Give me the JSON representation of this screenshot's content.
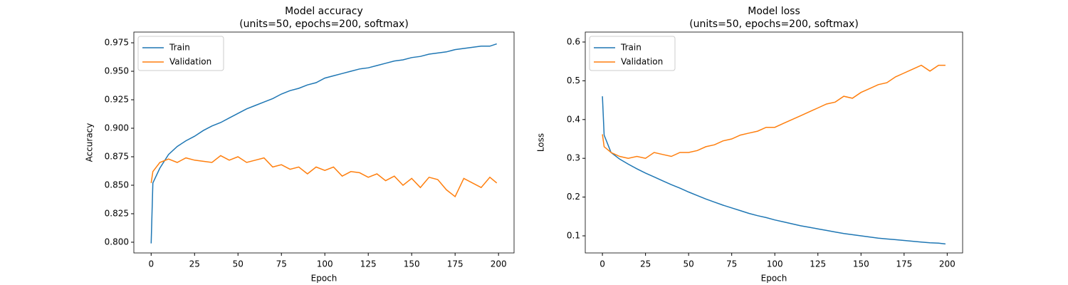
{
  "chart_data": [
    {
      "type": "line",
      "title": "Model accuracy",
      "subtitle": "(units=50, epochs=200, softmax)",
      "x_label": "Epoch",
      "y_label": "Accuracy",
      "x": [
        0,
        1,
        5,
        10,
        15,
        20,
        25,
        30,
        35,
        40,
        45,
        50,
        55,
        60,
        65,
        70,
        75,
        80,
        85,
        90,
        95,
        100,
        105,
        110,
        115,
        120,
        125,
        130,
        135,
        140,
        145,
        150,
        155,
        160,
        165,
        170,
        175,
        180,
        185,
        190,
        195,
        199
      ],
      "series": [
        {
          "name": "Train",
          "color": "#1f77b4",
          "values": [
            0.799,
            0.852,
            0.865,
            0.877,
            0.884,
            0.889,
            0.893,
            0.898,
            0.902,
            0.905,
            0.909,
            0.913,
            0.917,
            0.92,
            0.923,
            0.926,
            0.93,
            0.933,
            0.935,
            0.938,
            0.94,
            0.944,
            0.946,
            0.948,
            0.95,
            0.952,
            0.953,
            0.955,
            0.957,
            0.959,
            0.96,
            0.962,
            0.963,
            0.965,
            0.966,
            0.967,
            0.969,
            0.97,
            0.971,
            0.972,
            0.972,
            0.974
          ]
        },
        {
          "name": "Validation",
          "color": "#ff7f0e",
          "values": [
            0.852,
            0.862,
            0.87,
            0.873,
            0.87,
            0.874,
            0.872,
            0.871,
            0.87,
            0.876,
            0.872,
            0.875,
            0.87,
            0.872,
            0.874,
            0.866,
            0.868,
            0.864,
            0.866,
            0.86,
            0.866,
            0.863,
            0.866,
            0.858,
            0.862,
            0.861,
            0.857,
            0.86,
            0.854,
            0.858,
            0.85,
            0.856,
            0.848,
            0.857,
            0.855,
            0.846,
            0.84,
            0.856,
            0.852,
            0.848,
            0.857,
            0.852
          ]
        }
      ],
      "xlim": [
        -9.95,
        208.95
      ],
      "xticks": [
        0,
        25,
        50,
        75,
        100,
        125,
        150,
        175,
        200
      ],
      "ylim": [
        0.7906,
        0.9844
      ],
      "yticks": [
        {
          "value": 0.8,
          "label": "0.800"
        },
        0.825,
        {
          "value": 0.85,
          "label": "0.850"
        },
        0.875,
        {
          "value": 0.9,
          "label": "0.900"
        },
        0.925,
        {
          "value": 0.95,
          "label": "0.950"
        },
        0.975
      ],
      "legend": "upper left"
    },
    {
      "type": "line",
      "title": "Model loss",
      "subtitle": "(units=50, epochs=200, softmax)",
      "x_label": "Epoch",
      "y_label": "Loss",
      "x": [
        0,
        1,
        5,
        10,
        15,
        20,
        25,
        30,
        35,
        40,
        45,
        50,
        55,
        60,
        65,
        70,
        75,
        80,
        85,
        90,
        95,
        100,
        105,
        110,
        115,
        120,
        125,
        130,
        135,
        140,
        145,
        150,
        155,
        160,
        165,
        170,
        175,
        180,
        185,
        190,
        195,
        199
      ],
      "series": [
        {
          "name": "Train",
          "color": "#1f77b4",
          "values": [
            0.46,
            0.36,
            0.315,
            0.298,
            0.285,
            0.273,
            0.262,
            0.252,
            0.242,
            0.232,
            0.223,
            0.213,
            0.204,
            0.195,
            0.187,
            0.179,
            0.172,
            0.165,
            0.158,
            0.152,
            0.147,
            0.141,
            0.136,
            0.131,
            0.126,
            0.122,
            0.118,
            0.114,
            0.11,
            0.106,
            0.103,
            0.1,
            0.097,
            0.094,
            0.092,
            0.09,
            0.088,
            0.086,
            0.084,
            0.082,
            0.081,
            0.079
          ]
        },
        {
          "name": "Validation",
          "color": "#ff7f0e",
          "values": [
            0.362,
            0.33,
            0.315,
            0.305,
            0.3,
            0.305,
            0.3,
            0.315,
            0.31,
            0.305,
            0.315,
            0.315,
            0.32,
            0.33,
            0.335,
            0.345,
            0.35,
            0.36,
            0.365,
            0.37,
            0.38,
            0.38,
            0.39,
            0.4,
            0.41,
            0.42,
            0.43,
            0.44,
            0.445,
            0.46,
            0.455,
            0.47,
            0.48,
            0.49,
            0.495,
            0.51,
            0.52,
            0.53,
            0.54,
            0.525,
            0.54,
            0.54
          ]
        }
      ],
      "xlim": [
        -9.95,
        208.95
      ],
      "xticks": [
        0,
        25,
        50,
        75,
        100,
        125,
        150,
        175,
        200
      ],
      "ylim": [
        0.0559,
        0.6257
      ],
      "yticks": [
        0.1,
        0.2,
        0.3,
        0.4,
        0.5,
        0.6
      ],
      "legend": "upper left"
    }
  ]
}
